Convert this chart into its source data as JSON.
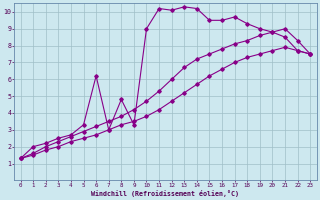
{
  "xlabel": "Windchill (Refroidissement éolien,°C)",
  "bg_color": "#cde8ef",
  "grid_color": "#a0bfc8",
  "line_color": "#880088",
  "xlim": [
    -0.5,
    23.5
  ],
  "ylim": [
    0,
    10.5
  ],
  "xticks": [
    0,
    1,
    2,
    3,
    4,
    5,
    6,
    7,
    8,
    9,
    10,
    11,
    12,
    13,
    14,
    15,
    16,
    17,
    18,
    19,
    20,
    21,
    22,
    23
  ],
  "yticks": [
    1,
    2,
    3,
    4,
    5,
    6,
    7,
    8,
    9,
    10
  ],
  "line1_x": [
    0,
    1,
    2,
    3,
    4,
    5,
    6,
    7,
    8,
    9,
    10,
    11,
    12,
    13,
    14,
    15,
    16,
    17,
    18,
    19,
    20,
    21,
    22,
    23
  ],
  "line1_y": [
    1.3,
    2.0,
    2.2,
    2.5,
    2.7,
    3.3,
    6.2,
    3.0,
    4.8,
    3.3,
    9.0,
    10.2,
    10.1,
    10.3,
    10.2,
    9.5,
    9.5,
    9.7,
    9.3,
    9.0,
    8.8,
    8.5,
    7.7,
    7.5
  ],
  "line2_x": [
    0,
    1,
    2,
    3,
    4,
    5,
    6,
    7,
    8,
    9,
    10,
    11,
    12,
    13,
    14,
    15,
    16,
    17,
    18,
    19,
    20,
    21,
    22,
    23
  ],
  "line2_y": [
    1.3,
    1.6,
    2.0,
    2.3,
    2.6,
    2.9,
    3.2,
    3.5,
    3.8,
    4.2,
    4.7,
    5.3,
    6.0,
    6.7,
    7.2,
    7.5,
    7.8,
    8.1,
    8.3,
    8.6,
    8.8,
    9.0,
    8.3,
    7.5
  ],
  "line3_x": [
    0,
    1,
    2,
    3,
    4,
    5,
    6,
    7,
    8,
    9,
    10,
    11,
    12,
    13,
    14,
    15,
    16,
    17,
    18,
    19,
    20,
    21,
    22,
    23
  ],
  "line3_y": [
    1.3,
    1.5,
    1.8,
    2.0,
    2.3,
    2.5,
    2.7,
    3.0,
    3.3,
    3.5,
    3.8,
    4.2,
    4.7,
    5.2,
    5.7,
    6.2,
    6.6,
    7.0,
    7.3,
    7.5,
    7.7,
    7.9,
    7.7,
    7.5
  ]
}
